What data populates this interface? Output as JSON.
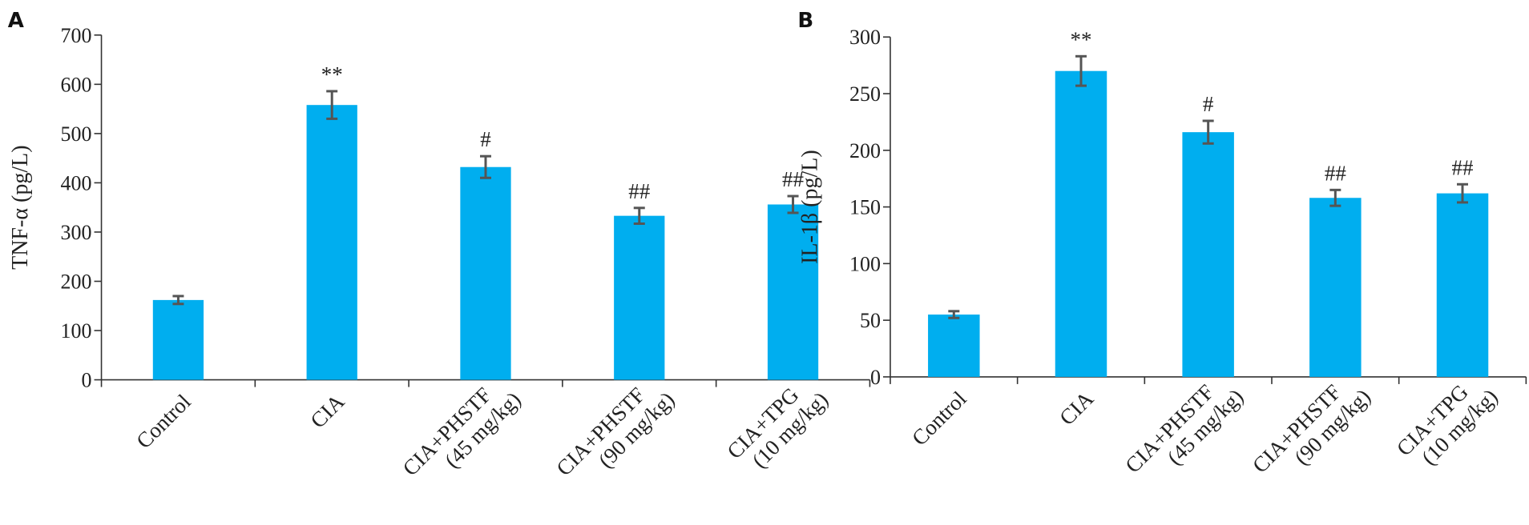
{
  "chart_data": [
    {
      "type": "bar",
      "panel": "A",
      "ylabel": "TNF-α (pg/L)",
      "ylim": [
        0,
        700
      ],
      "yticks": [
        0,
        100,
        200,
        300,
        400,
        500,
        600,
        700
      ],
      "categories": [
        [
          "Control"
        ],
        [
          "CIA"
        ],
        [
          "CIA+PHSTF",
          "(45 mg/kg)"
        ],
        [
          "CIA+PHSTF",
          "(90 mg/kg)"
        ],
        [
          "CIA+TPG",
          "(10 mg/kg)"
        ]
      ],
      "values": [
        162,
        558,
        432,
        333,
        356
      ],
      "errors": [
        8,
        28,
        22,
        16,
        17
      ],
      "significance": [
        "",
        "**",
        "#",
        "##",
        "##"
      ],
      "bar_color": "#00aeef",
      "error_color": "#555555"
    },
    {
      "type": "bar",
      "panel": "B",
      "ylabel": "IL-1β (pg/L)",
      "ylim": [
        0,
        300
      ],
      "yticks": [
        0,
        50,
        100,
        150,
        200,
        250,
        300
      ],
      "categories": [
        [
          "Control"
        ],
        [
          "CIA"
        ],
        [
          "CIA+PHSTF",
          "(45 mg/kg)"
        ],
        [
          "CIA+PHSTF",
          "(90 mg/kg)"
        ],
        [
          "CIA+TPG",
          "(10 mg/kg)"
        ]
      ],
      "values": [
        55,
        270,
        216,
        158,
        162
      ],
      "errors": [
        3,
        13,
        10,
        7,
        8
      ],
      "significance": [
        "",
        "**",
        "#",
        "##",
        "##"
      ],
      "bar_color": "#00aeef",
      "error_color": "#555555"
    }
  ]
}
